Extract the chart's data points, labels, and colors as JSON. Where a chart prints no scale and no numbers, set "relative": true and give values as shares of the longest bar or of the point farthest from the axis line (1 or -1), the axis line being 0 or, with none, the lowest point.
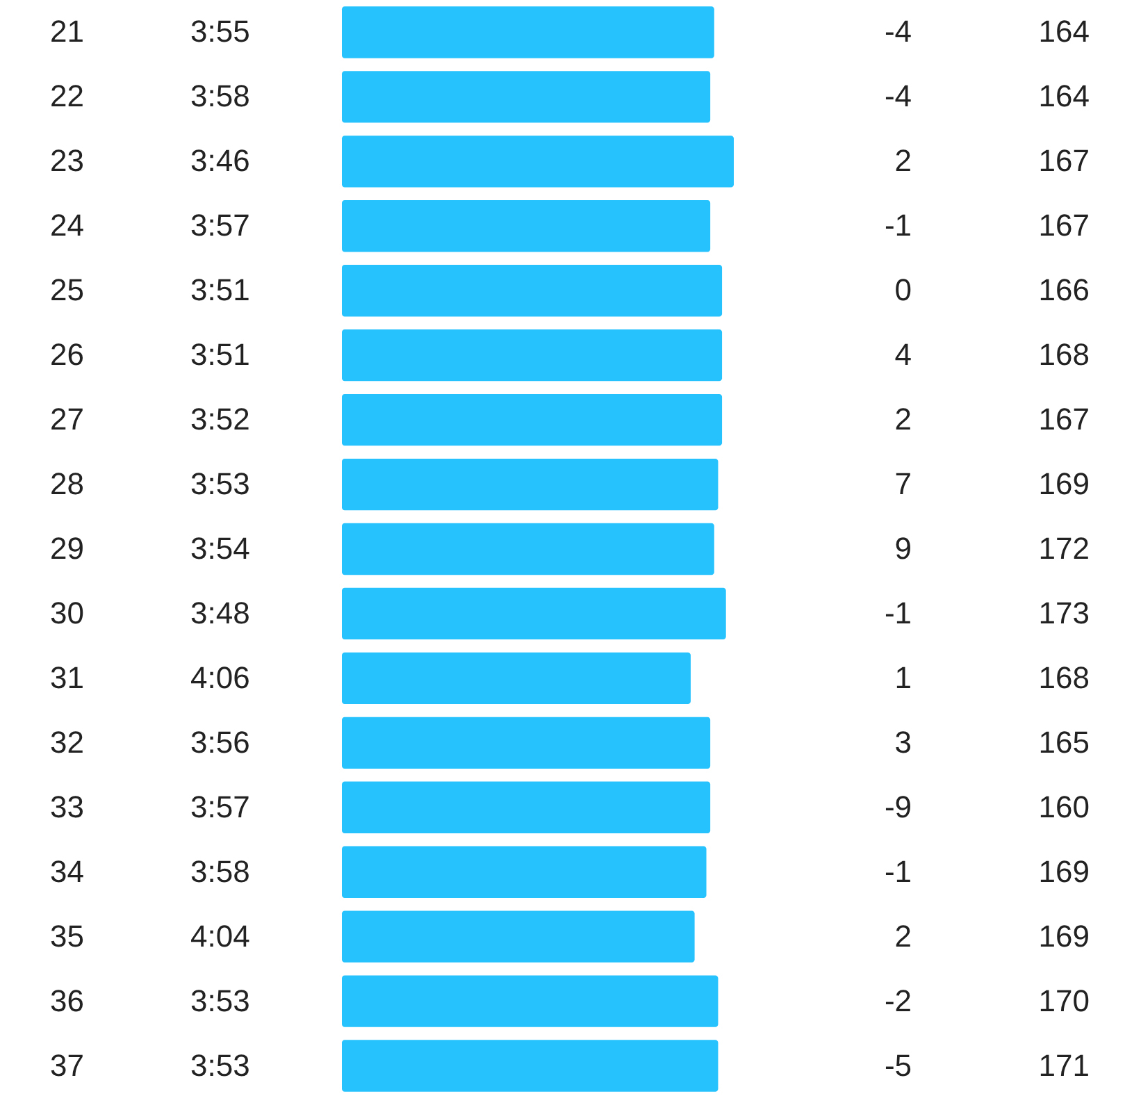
{
  "chart_data": {
    "type": "bar",
    "orientation": "horizontal",
    "relative": true,
    "color": "#26c2fe",
    "categories": [
      "21",
      "22",
      "23",
      "24",
      "25",
      "26",
      "27",
      "28",
      "29",
      "30",
      "31",
      "32",
      "33",
      "34",
      "35",
      "36",
      "37"
    ],
    "values": [
      0.95,
      0.94,
      1,
      0.94,
      0.97,
      0.97,
      0.97,
      0.96,
      0.95,
      0.98,
      0.89,
      0.94,
      0.94,
      0.93,
      0.9,
      0.96,
      0.96
    ],
    "annotations": [
      "3:55",
      "-4",
      "164",
      "3:58",
      "-4",
      "164",
      "3:46",
      "2",
      "167",
      "3:57",
      "-1",
      "167",
      "3:51",
      "0",
      "166",
      "3:51",
      "4",
      "168",
      "3:52",
      "2",
      "167",
      "3:53",
      "7",
      "169",
      "3:54",
      "9",
      "172",
      "3:48",
      "-1",
      "173",
      "4:06",
      "1",
      "168",
      "3:56",
      "3",
      "165",
      "3:57",
      "-9",
      "160",
      "3:58",
      "-1",
      "169",
      "4:04",
      "2",
      "169",
      "3:53",
      "-2",
      "170",
      "3:53",
      "-5",
      "171"
    ]
  }
}
